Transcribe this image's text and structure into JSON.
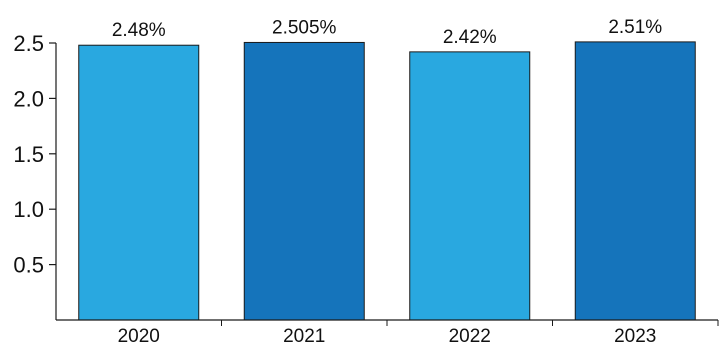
{
  "chart_data": {
    "type": "bar",
    "categories": [
      "2020",
      "2021",
      "2022",
      "2023"
    ],
    "values": [
      2.48,
      2.505,
      2.42,
      2.51
    ],
    "data_labels": [
      "2.48%",
      "2.505%",
      "2.42%",
      "2.51%"
    ],
    "y_ticks": [
      0.5,
      1.0,
      1.5,
      2.0,
      2.5
    ],
    "y_tick_labels": [
      "0.5",
      "1.0",
      "1.5",
      "2.0",
      "2.5"
    ],
    "ylim": [
      0,
      2.5
    ],
    "grid": false,
    "legend": "none",
    "title": "",
    "xlabel": "",
    "ylabel": "",
    "colors": [
      "#29A8E0",
      "#1574BB",
      "#29A8E0",
      "#1574BB"
    ]
  }
}
